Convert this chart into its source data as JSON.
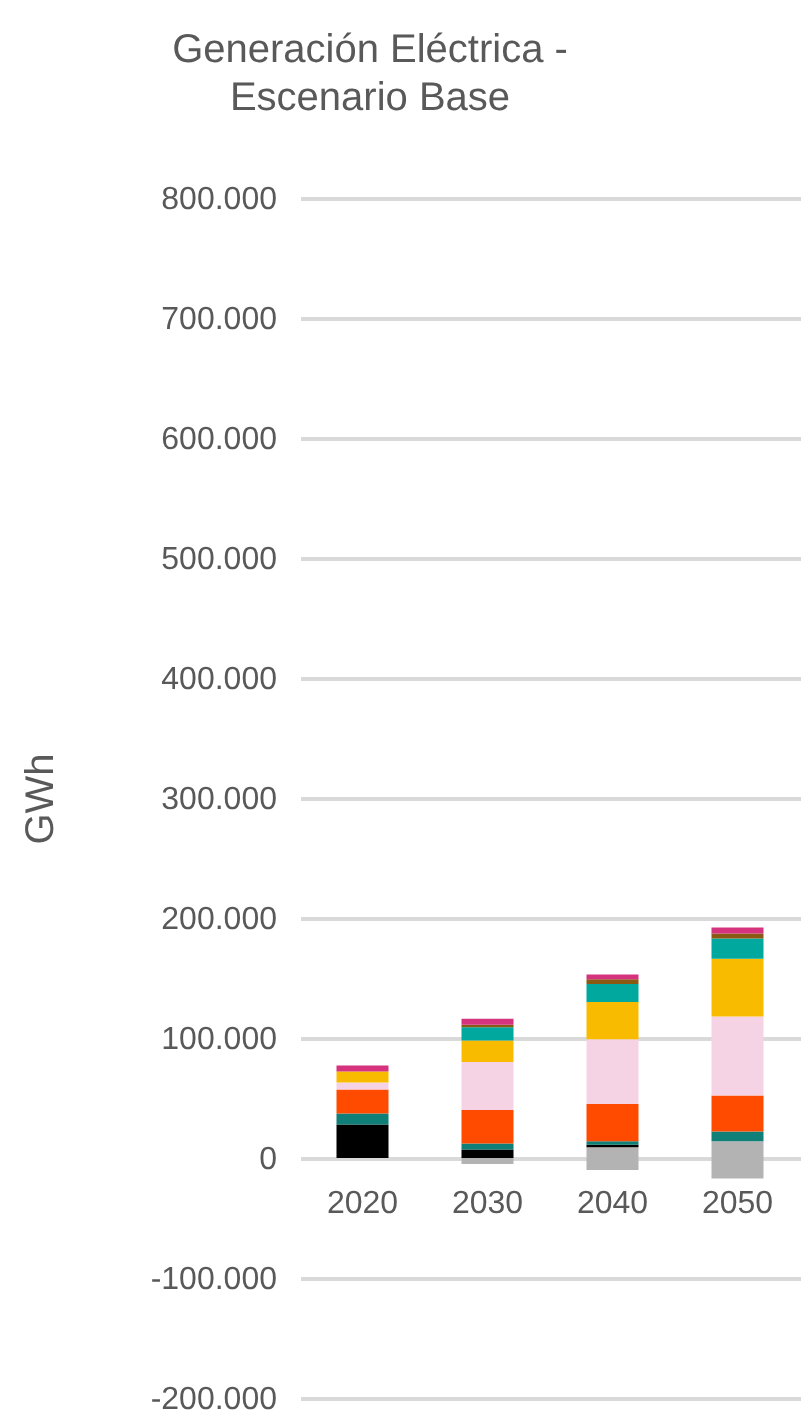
{
  "chart_data": {
    "type": "bar",
    "title": "Generación Eléctrica -\nEscenario Base",
    "ylabel": "GWh",
    "stacked": true,
    "categories": [
      "2020",
      "2030",
      "2040",
      "2050"
    ],
    "series": [
      {
        "color": "#b3b3b3",
        "values": [
          0,
          0,
          9000,
          14000
        ]
      },
      {
        "color": "#b3b3b3",
        "values": [
          null,
          -5000,
          -10000,
          -17000
        ]
      },
      {
        "color": "#000000",
        "values": [
          28000,
          7000,
          2000,
          null
        ]
      },
      {
        "color": "#0f7f78",
        "values": [
          9000,
          5000,
          3000,
          8000
        ]
      },
      {
        "color": "#ff4b00",
        "values": [
          20000,
          28000,
          31000,
          30000
        ]
      },
      {
        "color": "#f6d3e4",
        "values": [
          6000,
          40000,
          54000,
          66000
        ]
      },
      {
        "color": "#f9bb00",
        "values": [
          9000,
          18000,
          31000,
          48000
        ]
      },
      {
        "color": "#00a89d",
        "values": [
          null,
          11000,
          15000,
          17000
        ]
      },
      {
        "color": "#8a5a14",
        "values": [
          null,
          2000,
          4000,
          4000
        ]
      },
      {
        "color": "#d6337f",
        "values": [
          5000,
          5000,
          4000,
          5000
        ]
      }
    ],
    "ylim": [
      -200000,
      800000
    ],
    "yticks": [
      {
        "value": -200000,
        "label": "-200.000"
      },
      {
        "value": -100000,
        "label": "-100.000"
      },
      {
        "value": 0,
        "label": "0"
      },
      {
        "value": 100000,
        "label": "100.000"
      },
      {
        "value": 200000,
        "label": "200.000"
      },
      {
        "value": 300000,
        "label": "300.000"
      },
      {
        "value": 400000,
        "label": "400.000"
      },
      {
        "value": 500000,
        "label": "500.000"
      },
      {
        "value": 600000,
        "label": "600.000"
      },
      {
        "value": 700000,
        "label": "700.000"
      },
      {
        "value": 800000,
        "label": "800.000"
      }
    ],
    "grid": "y",
    "legend": false
  }
}
